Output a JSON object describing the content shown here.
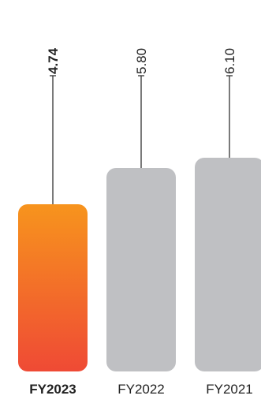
{
  "chart_data": {
    "type": "bar",
    "categories": [
      "FY2023",
      "FY2022",
      "FY2021"
    ],
    "values": [
      4.74,
      5.8,
      6.1
    ],
    "value_labels": [
      "4.74",
      "5.80",
      "6.10"
    ],
    "highlight_index": 0,
    "title": "",
    "xlabel": "",
    "ylabel": "",
    "grid": false,
    "colors": {
      "highlight_top": "#f7941d",
      "highlight_bottom": "#ef4a35",
      "default": "#bfc0c3",
      "stem": "#333333",
      "text": "#222222"
    }
  }
}
